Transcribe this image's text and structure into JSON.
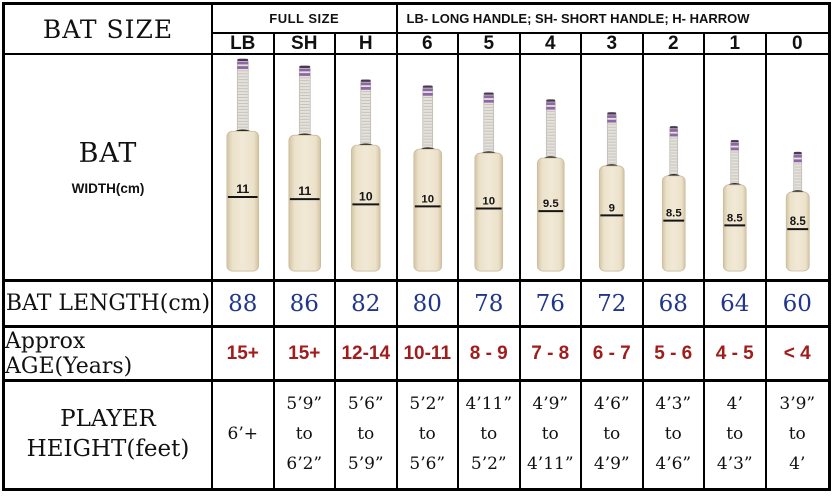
{
  "chart_data": {
    "type": "table",
    "title": "BAT SIZE",
    "header": {
      "full_size": "FULL SIZE",
      "legend": "LB- LONG HANDLE; SH- SHORT HANDLE; H- HARROW"
    },
    "columns": [
      "LB",
      "SH",
      "H",
      "6",
      "5",
      "4",
      "3",
      "2",
      "1",
      "0"
    ],
    "full_size_columns": [
      "LB",
      "SH",
      "H"
    ],
    "width_cm": {
      "label_top": "BAT",
      "label_bottom": "WIDTH(cm)",
      "values": [
        "11",
        "11",
        "10",
        "10",
        "10",
        "9.5",
        "9",
        "8.5",
        "8.5",
        "8.5"
      ]
    },
    "length_cm": {
      "label": "BAT LENGTH(cm)",
      "values": [
        88,
        86,
        82,
        80,
        78,
        76,
        72,
        68,
        64,
        60
      ]
    },
    "age_years": {
      "label": "Approx AGE(Years)",
      "values": [
        "15+",
        "15+",
        "12-14",
        "10-11",
        "8 - 9",
        "7 - 8",
        "6 - 7",
        "5 - 6",
        "4 - 5",
        "< 4"
      ]
    },
    "player_height_feet": {
      "label_top": "PLAYER",
      "label_bottom": "HEIGHT(feet)",
      "values": [
        [
          "6’+"
        ],
        [
          "5’9”",
          "to",
          "6’2”"
        ],
        [
          "5’6”",
          "to",
          "5’9”"
        ],
        [
          "5’2”",
          "to",
          "5’6”"
        ],
        [
          "4’11”",
          "to",
          "5’2”"
        ],
        [
          "4’9”",
          "to",
          "4’11”"
        ],
        [
          "4’6”",
          "to",
          "4’9”"
        ],
        [
          "4’3”",
          "to",
          "4’6”"
        ],
        [
          "4’",
          "to",
          "4’3”"
        ],
        [
          "3’9”",
          "to",
          "4’"
        ]
      ]
    }
  },
  "colors": {
    "border": "#000000",
    "length_text": "#21368b",
    "age_text": "#a11d1d",
    "bat_blade_light": "#f1e9d6",
    "bat_blade_mid": "#ece2cb",
    "bat_blade_dark": "#d3c4a2",
    "bat_handle": "#e4e2db",
    "bat_stripe": "#c6c4bc",
    "bat_band": "#8d66a6",
    "bat_cap": "#473a50",
    "bat_collar": "#141414",
    "bat_mark": "#151515"
  }
}
